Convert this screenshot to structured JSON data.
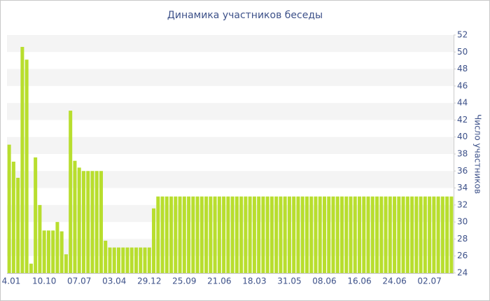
{
  "chart_data": {
    "type": "bar",
    "title": "Динамика участников беседы",
    "y_label": "Число участников",
    "color": "#b8de2e",
    "categories": [
      "4.01",
      null,
      null,
      null,
      null,
      null,
      null,
      null,
      "10.10",
      null,
      null,
      null,
      null,
      null,
      null,
      null,
      "07.07",
      null,
      null,
      null,
      null,
      null,
      null,
      null,
      "03.04",
      null,
      null,
      null,
      null,
      null,
      null,
      null,
      "29.12",
      null,
      null,
      null,
      null,
      null,
      null,
      null,
      "25.09",
      null,
      null,
      null,
      null,
      null,
      null,
      null,
      "21.06",
      null,
      null,
      null,
      null,
      null,
      null,
      null,
      "18.03",
      null,
      null,
      null,
      null,
      null,
      null,
      null,
      "31.05",
      null,
      null,
      null,
      null,
      null,
      null,
      null,
      "08.06",
      null,
      null,
      null,
      null,
      null,
      null,
      null,
      "16.06",
      null,
      null,
      null,
      null,
      null,
      null,
      null,
      "24.06",
      null,
      null,
      null,
      null,
      null,
      null,
      null,
      "02.07",
      null,
      null,
      null,
      null,
      null
    ],
    "values": [
      39.1,
      37.1,
      35.2,
      50.6,
      49.1,
      25.1,
      37.6,
      32,
      29,
      29,
      29,
      30,
      28.9,
      26.2,
      43.1,
      37.2,
      36.4,
      36,
      36,
      36,
      36,
      36,
      27.8,
      27,
      27,
      27,
      27,
      27,
      27,
      27,
      27,
      27,
      27,
      31.6,
      33,
      33,
      33,
      33,
      33,
      33,
      33,
      33,
      33,
      33,
      33,
      33,
      33,
      33,
      33,
      33,
      33,
      33,
      33,
      33,
      33,
      33,
      33,
      33,
      33,
      33,
      33,
      33,
      33,
      33,
      33,
      33,
      33,
      33,
      33,
      33,
      33,
      33,
      33,
      33,
      33,
      33,
      33,
      33,
      33,
      33,
      33,
      33,
      33,
      33,
      33,
      33,
      33,
      33,
      33,
      33,
      33,
      33,
      33,
      33,
      33,
      33,
      33,
      33,
      33,
      33,
      33,
      33
    ],
    "ylim": [
      24,
      52
    ],
    "yticks": [
      24,
      26,
      28,
      30,
      32,
      34,
      36,
      38,
      40,
      42,
      44,
      46,
      48,
      50,
      52
    ],
    "grid": "bands"
  }
}
